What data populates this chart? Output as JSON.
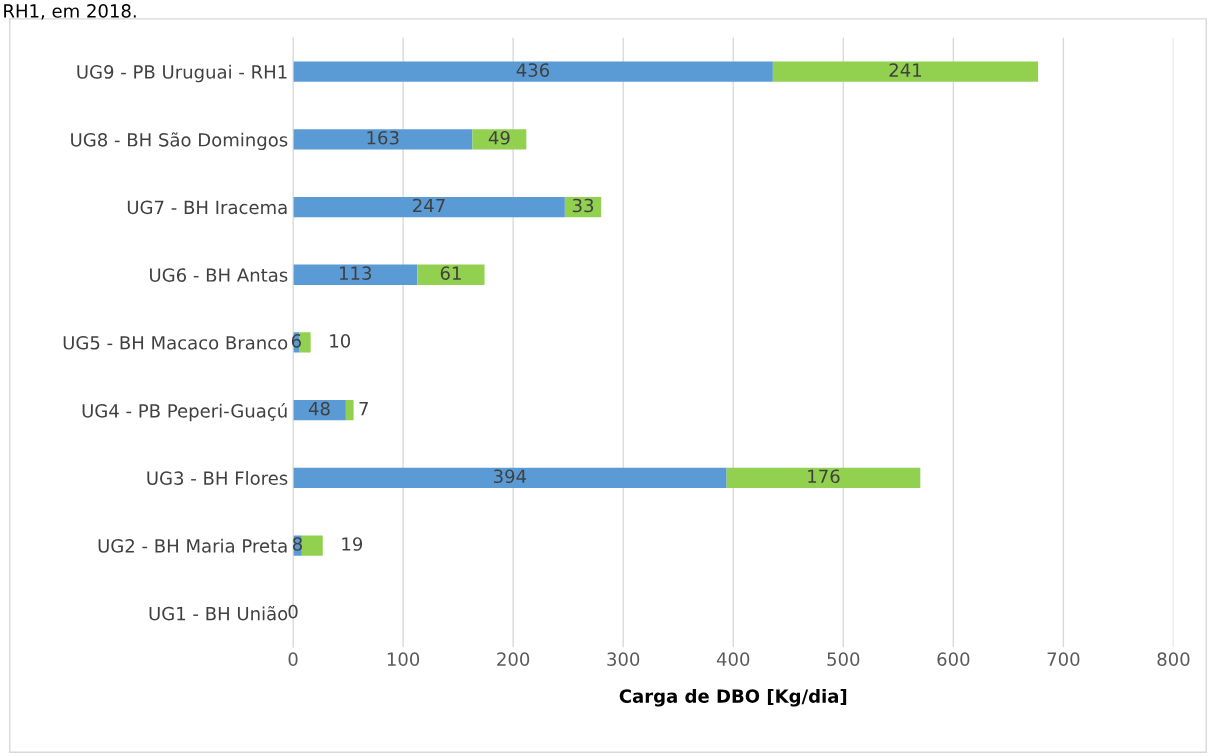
{
  "chart_data": {
    "type": "bar",
    "orientation": "horizontal",
    "stacked": true,
    "categories": [
      "UG9 - PB Uruguai - RH1",
      "UG8 - BH São Domingos",
      "UG7 - BH Iracema",
      "UG6 - BH Antas",
      "UG5 - BH Macaco Branco",
      "UG4 - PB Peperi-Guaçú",
      "UG3 - BH Flores",
      "UG2 - BH Maria Preta",
      "UG1 - BH União"
    ],
    "series": [
      {
        "color": "#5b9bd5",
        "values": [
          436,
          163,
          247,
          113,
          6,
          48,
          394,
          8,
          0
        ],
        "value_labels": [
          "436",
          "163",
          "247",
          "113",
          "6",
          "48",
          "394",
          "8",
          "0"
        ]
      },
      {
        "color": "#92d050",
        "values": [
          241,
          49,
          33,
          61,
          10,
          7,
          176,
          19,
          0
        ],
        "value_labels": [
          "241",
          "49",
          "33",
          "61",
          "10",
          "7",
          "176",
          "19",
          null
        ]
      }
    ],
    "xlabel": "Carga de DBO [Kg/dia]",
    "xlim": [
      0,
      800
    ],
    "xticks": [
      0,
      100,
      200,
      300,
      400,
      500,
      600,
      700,
      800
    ],
    "grid": "x",
    "legend": false,
    "annotations": [
      "RH1, em 2018."
    ]
  }
}
